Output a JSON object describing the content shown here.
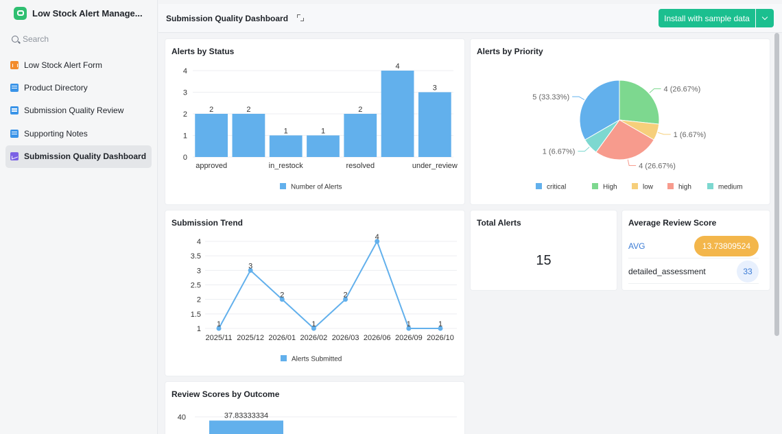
{
  "sidebar": {
    "app_title": "Low Stock Alert Manage...",
    "search_placeholder": "Search",
    "items": [
      {
        "label": "Low Stock Alert Form",
        "icon": "form-icon"
      },
      {
        "label": "Product Directory",
        "icon": "table-icon"
      },
      {
        "label": "Submission Quality Review",
        "icon": "table-icon"
      },
      {
        "label": "Supporting Notes",
        "icon": "table-icon"
      },
      {
        "label": "Submission Quality Dashboard",
        "icon": "dashboard-icon",
        "active": true
      }
    ]
  },
  "header": {
    "title": "Submission Quality Dashboard",
    "install_label": "Install with sample data",
    "accent": "#1bbf8f"
  },
  "cards": {
    "status": {
      "title": "Alerts by Status"
    },
    "priority": {
      "title": "Alerts by Priority"
    },
    "trend": {
      "title": "Submission Trend"
    },
    "total": {
      "title": "Total Alerts",
      "value": "15"
    },
    "avg": {
      "title": "Average Review Score",
      "rows": [
        {
          "label": "AVG",
          "value": "13.73809524"
        },
        {
          "label": "detailed_assessment",
          "value": "33"
        }
      ]
    },
    "outcome": {
      "title": "Review Scores by Outcome"
    }
  },
  "chart_data": [
    {
      "type": "bar",
      "title": "Alerts by Status",
      "categories": [
        "approved",
        "",
        "in_restock",
        "",
        "resolved",
        "",
        "under_review"
      ],
      "values": [
        2,
        2,
        1,
        1,
        2,
        4,
        3
      ],
      "tick_labels": [
        "approved",
        "in_restock",
        "resolved",
        "under_review"
      ],
      "ylim": [
        0,
        4
      ],
      "yticks": [
        0,
        1,
        2,
        3,
        4
      ],
      "series": [
        {
          "name": "Number of Alerts",
          "values": [
            2,
            2,
            1,
            1,
            2,
            4,
            3
          ]
        }
      ],
      "color": "#62b0ec",
      "legend": "bottom",
      "grid": true
    },
    {
      "type": "pie",
      "title": "Alerts by Priority",
      "slices": [
        {
          "label": "critical",
          "value": 5,
          "text": "5 (33.33%)",
          "color": "#62b0ec"
        },
        {
          "label": "High",
          "value": 4,
          "text": "4 (26.67%)",
          "color": "#7dd88f"
        },
        {
          "label": "low",
          "value": 1,
          "text": "1 (6.67%)",
          "color": "#f6cf7b"
        },
        {
          "label": "high",
          "value": 4,
          "text": "4 (26.67%)",
          "color": "#f79b8d"
        },
        {
          "label": "medium",
          "value": 1,
          "text": "1 (6.67%)",
          "color": "#7dd8d0"
        }
      ],
      "legend": "bottom"
    },
    {
      "type": "line",
      "title": "Submission Trend",
      "x": [
        "2025/11",
        "2025/12",
        "2026/01",
        "2026/02",
        "2026/03",
        "2026/06",
        "2026/09",
        "2026/10"
      ],
      "series": [
        {
          "name": "Alerts Submitted",
          "values": [
            1,
            3,
            2,
            1,
            2,
            4,
            1,
            1
          ]
        }
      ],
      "ylim": [
        1,
        4
      ],
      "yticks": [
        1,
        1.5,
        2,
        2.5,
        3,
        3.5,
        4
      ],
      "color": "#62b0ec",
      "legend": "bottom",
      "grid": true
    },
    {
      "type": "bar",
      "title": "Review Scores by Outcome",
      "categories": [
        ""
      ],
      "values": [
        37.83333334
      ],
      "value_labels": [
        "37.83333334"
      ],
      "yticks": [
        40
      ],
      "color": "#62b0ec"
    }
  ]
}
